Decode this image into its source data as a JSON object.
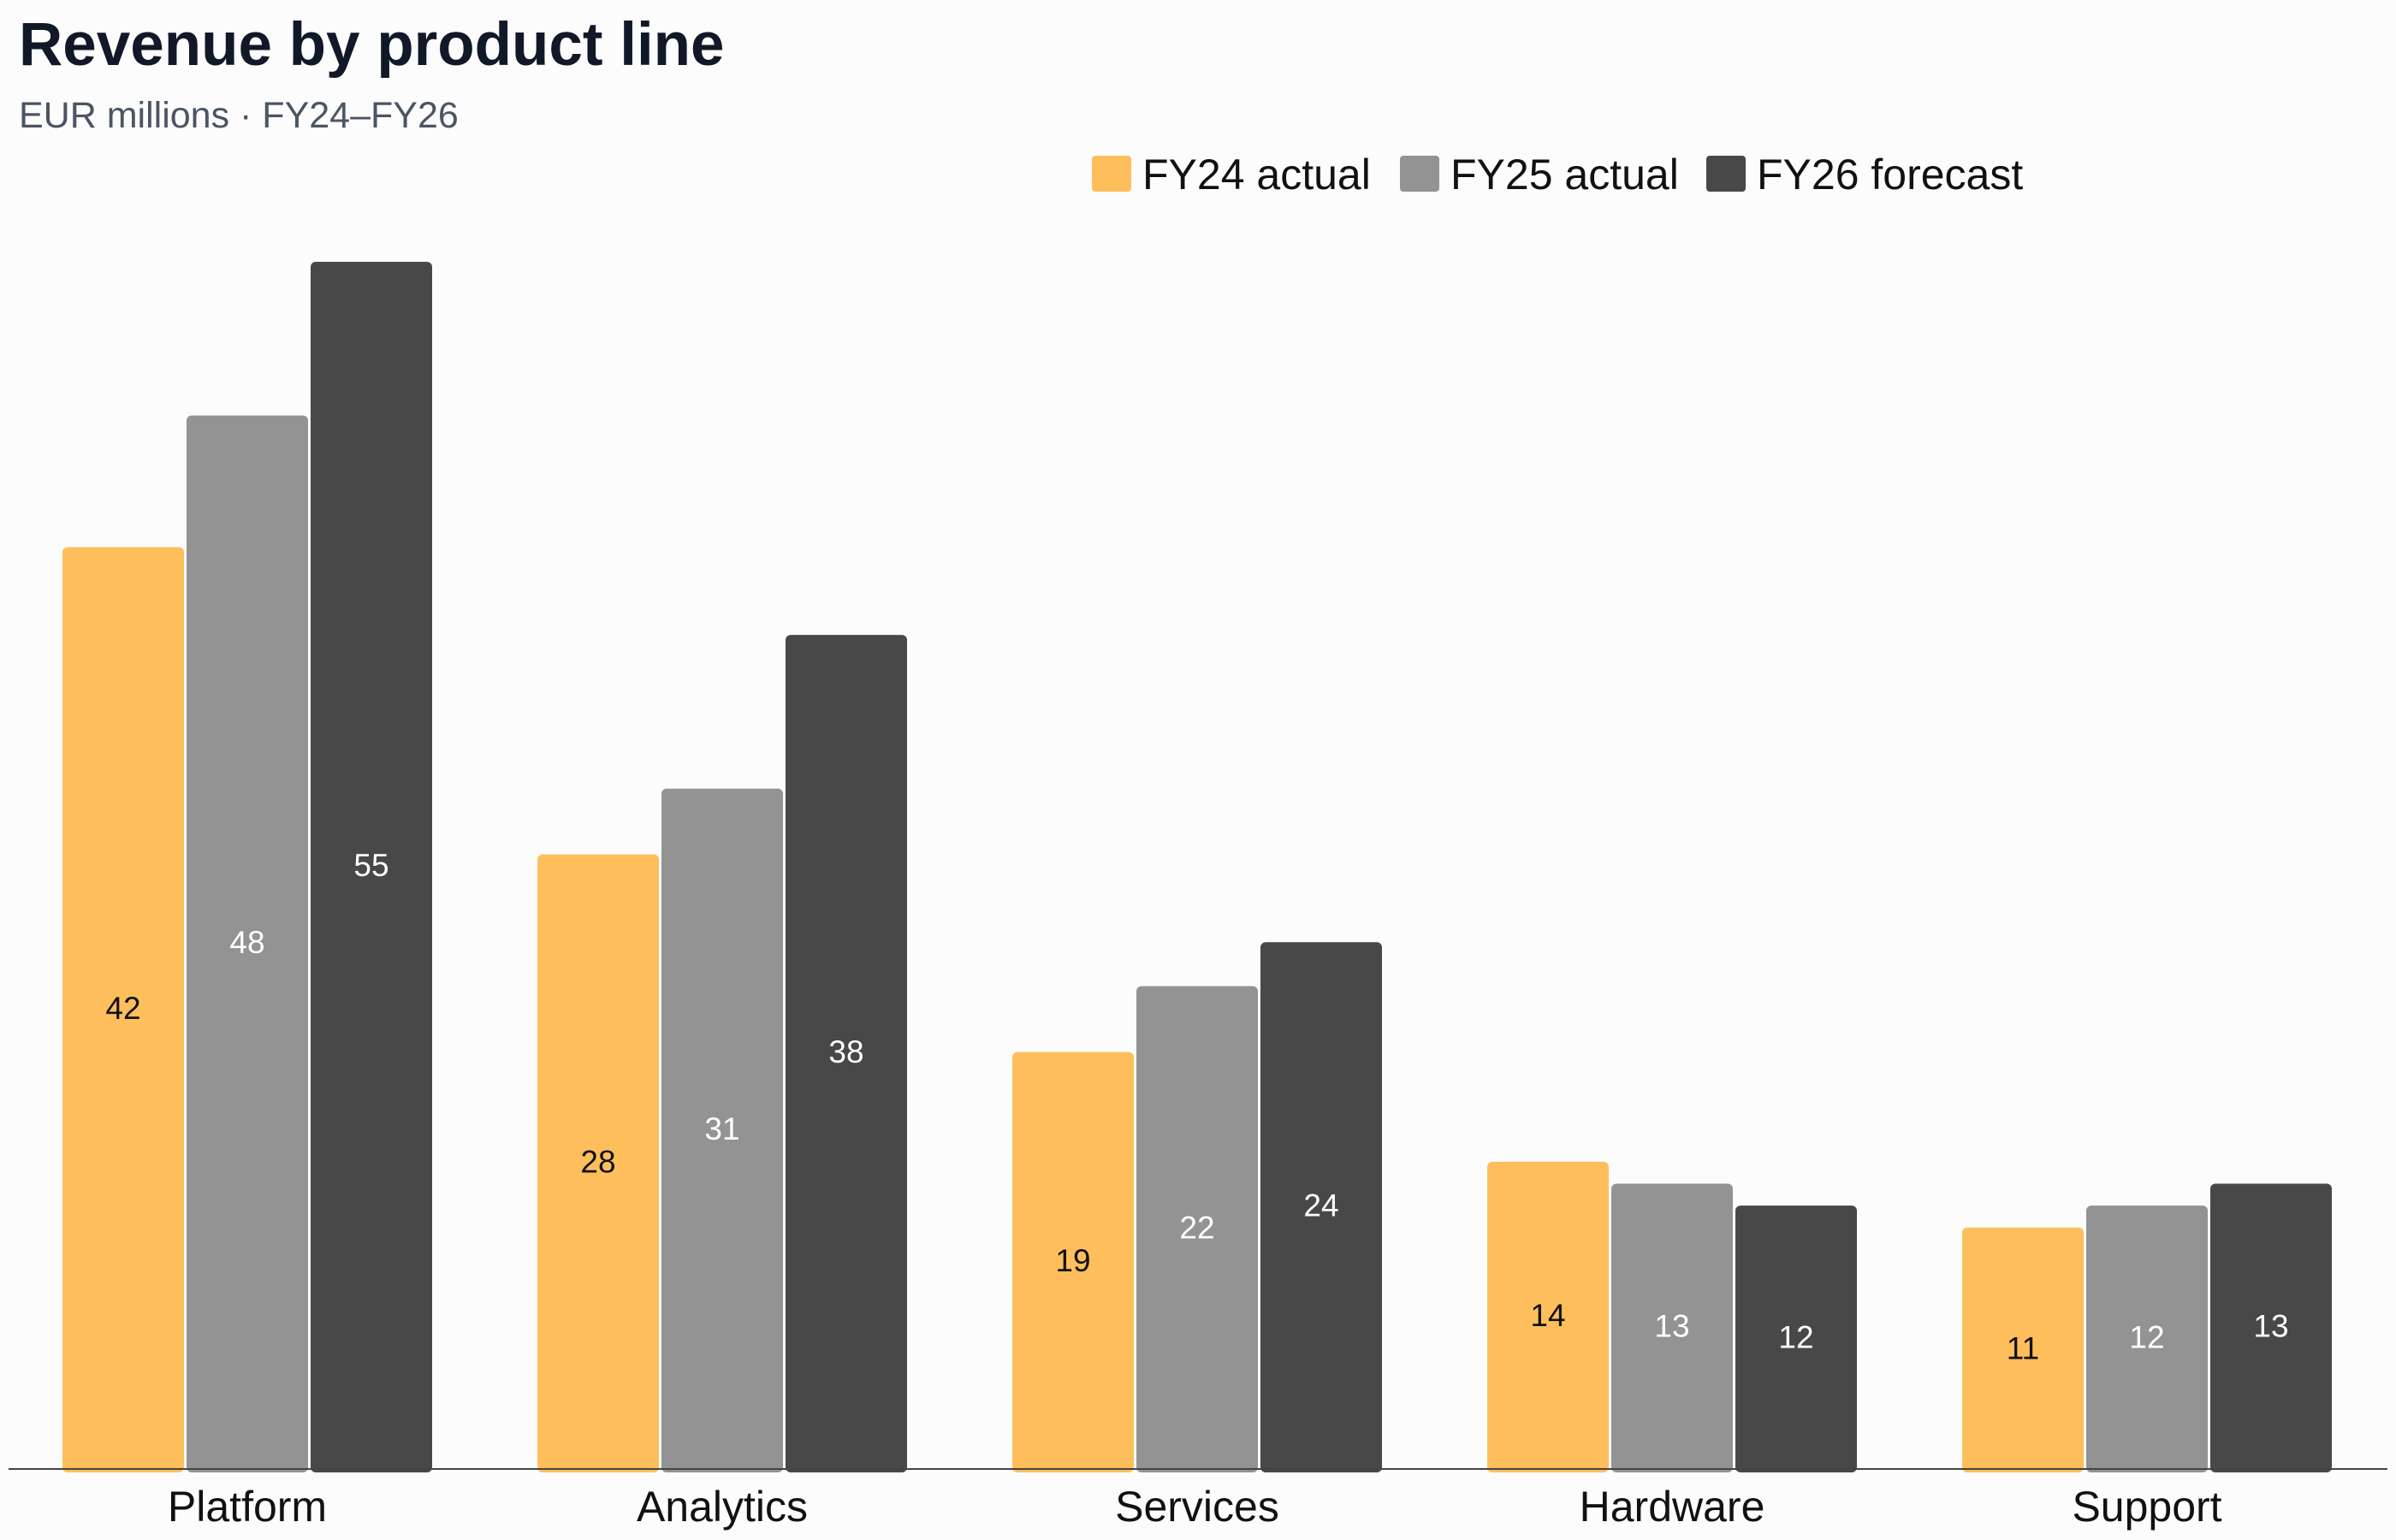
{
  "chart_data": {
    "type": "bar",
    "title": "Revenue by product line",
    "subtitle": "EUR millions · FY24–FY26",
    "categories": [
      "Platform",
      "Analytics",
      "Services",
      "Hardware",
      "Support"
    ],
    "series": [
      {
        "name": "FY24 actual",
        "color": "#ffbe5c",
        "label_color": "#111111",
        "values": [
          42,
          28,
          19,
          14,
          11
        ]
      },
      {
        "name": "FY25 actual",
        "color": "#939393",
        "label_color": "#ffffff",
        "values": [
          48,
          31,
          22,
          13,
          12
        ]
      },
      {
        "name": "FY26 forecast",
        "color": "#484848",
        "label_color": "#ffffff",
        "values": [
          55,
          38,
          24,
          12,
          13
        ]
      }
    ],
    "ylim": [
      0,
      55
    ],
    "grid": false,
    "legend_position": "top-right",
    "data_labels": "inside-center",
    "xlabel": "",
    "ylabel": ""
  }
}
